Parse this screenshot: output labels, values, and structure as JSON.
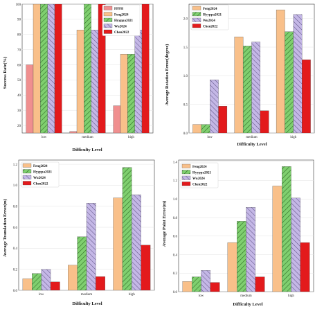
{
  "colors": {
    "FPFH": "#f08f8f",
    "Feng2024": "#f9c08a",
    "Hyyppa2021": "#7fcf6f",
    "Wu2024": "#c4b7e6",
    "Chen2022": "#e31a1c"
  },
  "chart_data": [
    {
      "type": "bar",
      "categories": [
        "low",
        "medium",
        "high"
      ],
      "xlabel": "Difficulty Level",
      "ylabel": "Success Rate(%)",
      "ylim": [
        15,
        100
      ],
      "yticks": [
        "20",
        "30",
        "40",
        "50",
        "60",
        "70",
        "80",
        "90",
        "100"
      ],
      "grid": true,
      "legend_position": "top-right",
      "series": [
        {
          "name": "FPFH",
          "values": [
            60,
            16,
            33
          ]
        },
        {
          "name": "Feng2024",
          "values": [
            100,
            83,
            67
          ]
        },
        {
          "name": "Hyyppa2021",
          "values": [
            100,
            100,
            67
          ]
        },
        {
          "name": "Wu2024",
          "values": [
            100,
            83,
            83
          ]
        },
        {
          "name": "Chen2022",
          "values": [
            100,
            100,
            100
          ]
        }
      ]
    },
    {
      "type": "bar",
      "categories": [
        "low",
        "medium",
        "high"
      ],
      "xlabel": "Difficulty Level",
      "ylabel": "Average Rotation Error(degree)",
      "ylim": [
        0,
        2.25
      ],
      "yticks": [
        "0.0",
        "0.5",
        "1.0",
        "1.5",
        "2.0"
      ],
      "grid": true,
      "legend_position": "top-left",
      "series": [
        {
          "name": "Feng2024",
          "values": [
            0.15,
            1.68,
            2.15
          ]
        },
        {
          "name": "Hyyppa2021",
          "values": [
            0.15,
            1.52,
            1.77
          ]
        },
        {
          "name": "Wu2024",
          "values": [
            0.93,
            1.59,
            2.07
          ]
        },
        {
          "name": "Chen2022",
          "values": [
            0.47,
            0.39,
            1.28
          ]
        }
      ]
    },
    {
      "type": "bar",
      "categories": [
        "low",
        "medium",
        "high"
      ],
      "xlabel": "Difficulty Level",
      "ylabel": "Average Translation Error(m)",
      "ylim": [
        0,
        1.24
      ],
      "yticks": [
        "0.0",
        "0.2",
        "0.4",
        "0.6",
        "0.8",
        "1.0",
        "1.2"
      ],
      "grid": true,
      "legend_position": "top-left",
      "series": [
        {
          "name": "Feng2024",
          "values": [
            0.11,
            0.24,
            0.88
          ]
        },
        {
          "name": "Hyyppa2021",
          "values": [
            0.16,
            0.51,
            1.17
          ]
        },
        {
          "name": "Wu2024",
          "values": [
            0.2,
            0.83,
            0.91
          ]
        },
        {
          "name": "Chen2022",
          "values": [
            0.08,
            0.13,
            0.43
          ]
        }
      ]
    },
    {
      "type": "bar",
      "categories": [
        "low",
        "medium",
        "high"
      ],
      "xlabel": "Difficulty Level",
      "ylabel": "Average Point Error(m)",
      "ylim": [
        0,
        1.42
      ],
      "yticks": [
        "0.0",
        "0.2",
        "0.4",
        "0.6",
        "0.8",
        "1.0",
        "1.2",
        "1.4"
      ],
      "grid": true,
      "legend_position": "top-left",
      "series": [
        {
          "name": "Feng2024",
          "values": [
            0.11,
            0.53,
            1.14
          ]
        },
        {
          "name": "Hyyppa2021",
          "values": [
            0.16,
            0.76,
            1.35
          ]
        },
        {
          "name": "Wu2024",
          "values": [
            0.23,
            0.91,
            1.01
          ]
        },
        {
          "name": "Chen2022",
          "values": [
            0.1,
            0.16,
            0.53
          ]
        }
      ]
    }
  ]
}
